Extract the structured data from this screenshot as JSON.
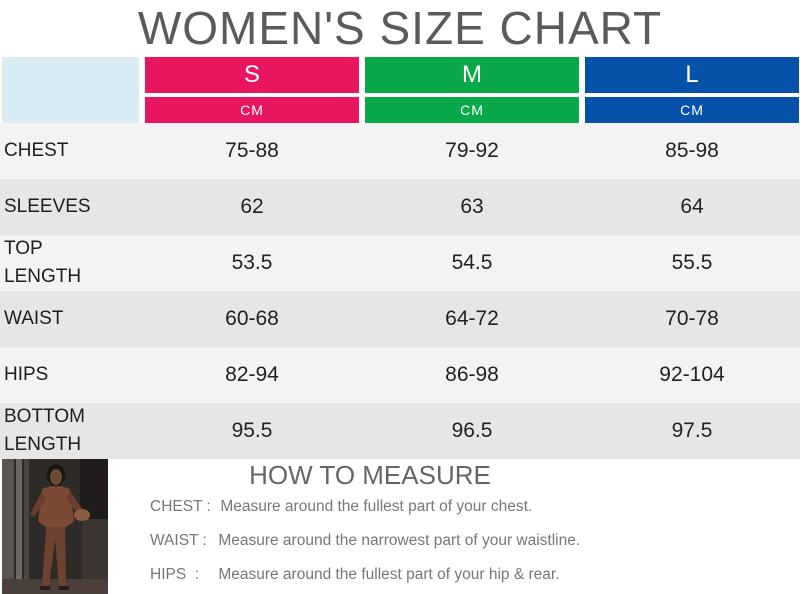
{
  "title": "WOMEN'S SIZE CHART",
  "colors": {
    "s": "#e8155f",
    "m": "#09a94a",
    "l": "#0552a8"
  },
  "sizes": [
    {
      "label": "S",
      "unit": "CM"
    },
    {
      "label": "M",
      "unit": "CM"
    },
    {
      "label": "L",
      "unit": "CM"
    }
  ],
  "rows": [
    {
      "label": "CHEST",
      "values": [
        "75-88",
        "79-92",
        "85-98"
      ]
    },
    {
      "label": "SLEEVES",
      "values": [
        "62",
        "63",
        "64"
      ]
    },
    {
      "label": "TOP LENGTH",
      "values": [
        "53.5",
        "54.5",
        "55.5"
      ]
    },
    {
      "label": "WAIST",
      "values": [
        "60-68",
        "64-72",
        "70-78"
      ]
    },
    {
      "label": "HIPS",
      "values": [
        "82-94",
        "86-98",
        "92-104"
      ]
    },
    {
      "label": "BOTTOM LENGTH",
      "values": [
        "95.5",
        "96.5",
        "97.5"
      ]
    }
  ],
  "how_to_measure": {
    "title": "HOW TO MEASURE",
    "items": [
      {
        "key": "CHEST :",
        "text": "Measure around the fullest part of your chest."
      },
      {
        "key": "WAIST :",
        "text": "Measure around the narrowest part of your waistline."
      },
      {
        "key": "HIPS  :",
        "text": "Measure around the fullest part of your hip & rear."
      }
    ]
  }
}
